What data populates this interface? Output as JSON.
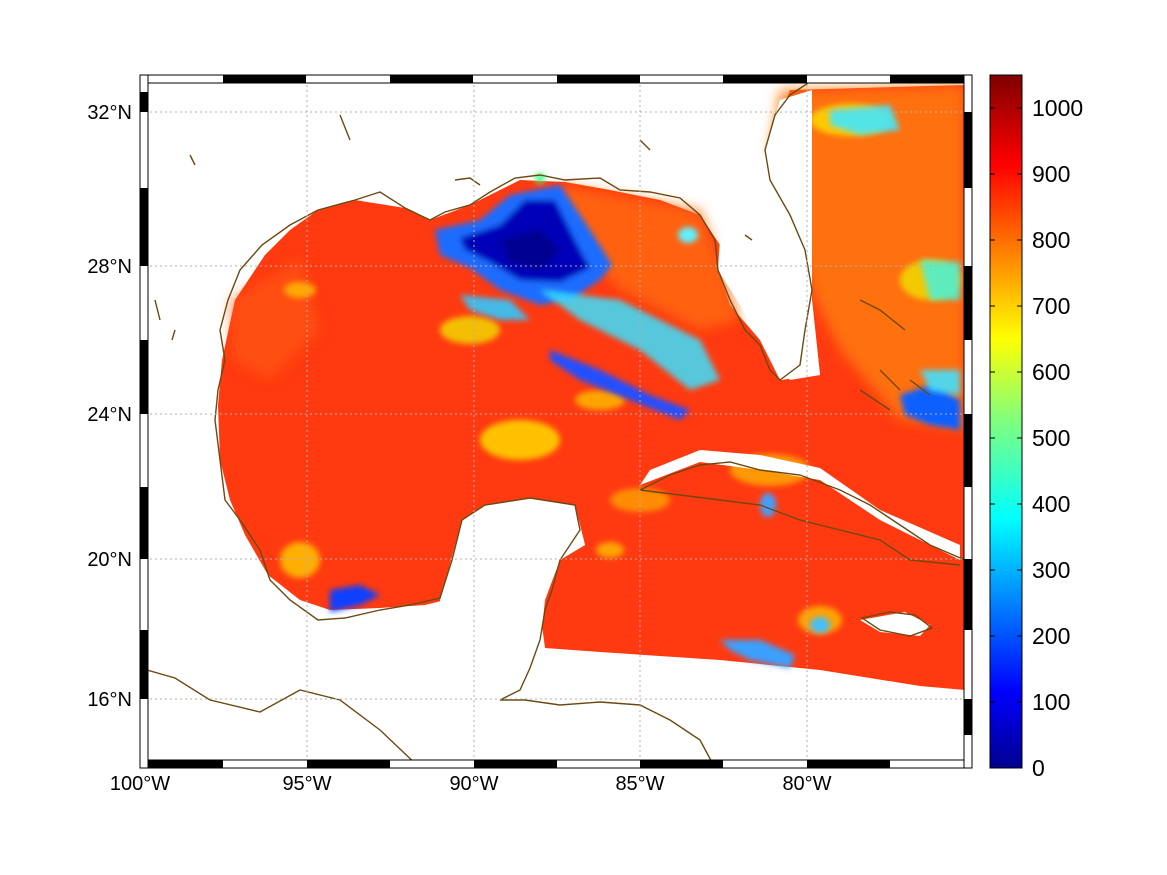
{
  "map": {
    "projection": "mercator-like",
    "lon_range": [
      -100,
      -75
    ],
    "lat_range": [
      14.2,
      33
    ],
    "lon_ticks": [
      "100°W",
      "95°W",
      "90°W",
      "85°W",
      "80°W"
    ],
    "lat_ticks": [
      "32°N",
      "28°N",
      "24°N",
      "20°N",
      "16°N"
    ],
    "grid": "dotted",
    "coastline_color": "#6b4a12",
    "land_color": "#ffffff",
    "frame_style": "black-white-checkered"
  },
  "colorbar": {
    "colormap": "jet",
    "range": [
      0,
      1050
    ],
    "tick_labels": [
      "0",
      "100",
      "200",
      "300",
      "400",
      "500",
      "600",
      "700",
      "800",
      "900",
      "1000"
    ]
  },
  "field": {
    "dominant_level": 880,
    "low_value_region": "Mississippi outflow / northern Gulf",
    "low_value_min": 0
  }
}
